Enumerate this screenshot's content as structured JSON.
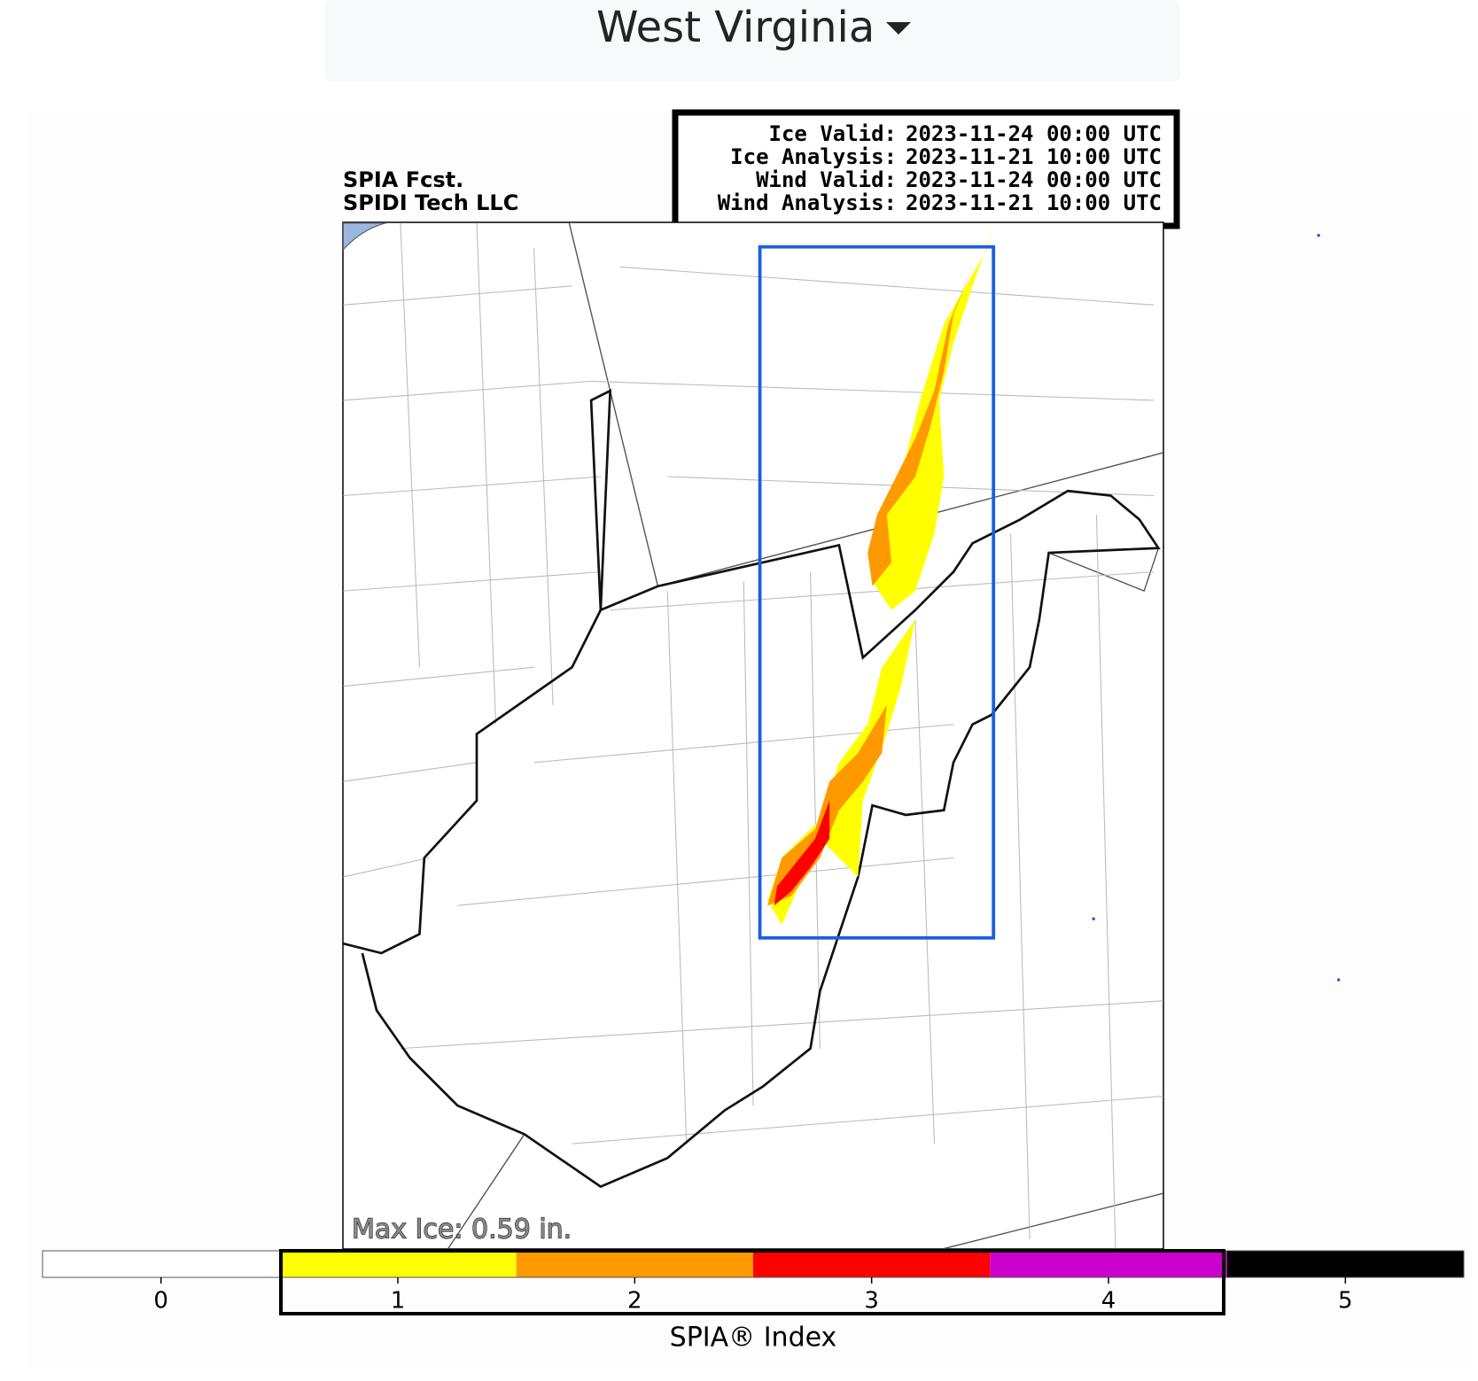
{
  "dropdown": {
    "label": "West Virginia"
  },
  "header": {
    "product": "SPIA Fcst.",
    "source": "SPIDI Tech LLC"
  },
  "info": [
    {
      "label": "Ice Valid:",
      "value": "2023-11-24 00:00 UTC"
    },
    {
      "label": "Ice Analysis:",
      "value": "2023-11-21 10:00 UTC"
    },
    {
      "label": "Wind Valid:",
      "value": "2023-11-24 00:00 UTC"
    },
    {
      "label": "Wind Analysis:",
      "value": "2023-11-21 10:00 UTC"
    }
  ],
  "map": {
    "annotation": "Max Ice: 0.59 in."
  },
  "colorbar": {
    "label": "SPIA® Index",
    "lim": [
      -0.5,
      5.5
    ],
    "ticks": [
      0,
      1,
      2,
      3,
      4,
      5
    ],
    "colors": [
      "#ffffff",
      "#ffff00",
      "#ff9900",
      "#ff0000",
      "#cc00cc",
      "#000000"
    ]
  }
}
